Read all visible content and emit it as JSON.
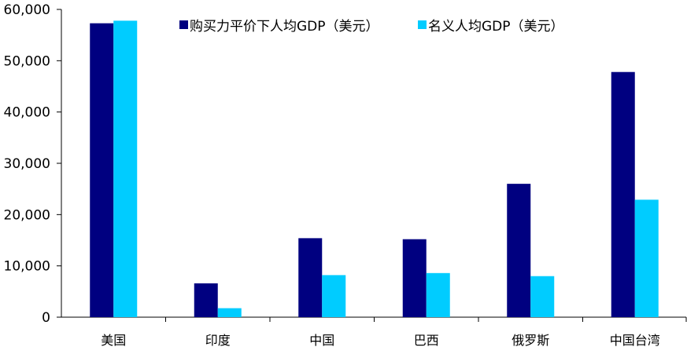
{
  "chart_data": {
    "type": "bar",
    "categories": [
      "美国",
      "印度",
      "中国",
      "巴西",
      "俄罗斯",
      "中国台湾"
    ],
    "series": [
      {
        "name": "购买力平价下人均GDP（美元）",
        "color": "#000080",
        "values": [
          57300,
          6600,
          15400,
          15200,
          26000,
          47800
        ]
      },
      {
        "name": "名义人均GDP（美元）",
        "color": "#00CCFF",
        "values": [
          57800,
          1750,
          8200,
          8600,
          8000,
          22900
        ]
      }
    ],
    "ylim": [
      0,
      60000
    ],
    "yticks": [
      0,
      10000,
      20000,
      30000,
      40000,
      50000,
      60000
    ],
    "ytick_labels": [
      "0",
      "10,000",
      "20,000",
      "30,000",
      "40,000",
      "50,000",
      "60,000"
    ],
    "legend_position": "top",
    "grid": false
  }
}
